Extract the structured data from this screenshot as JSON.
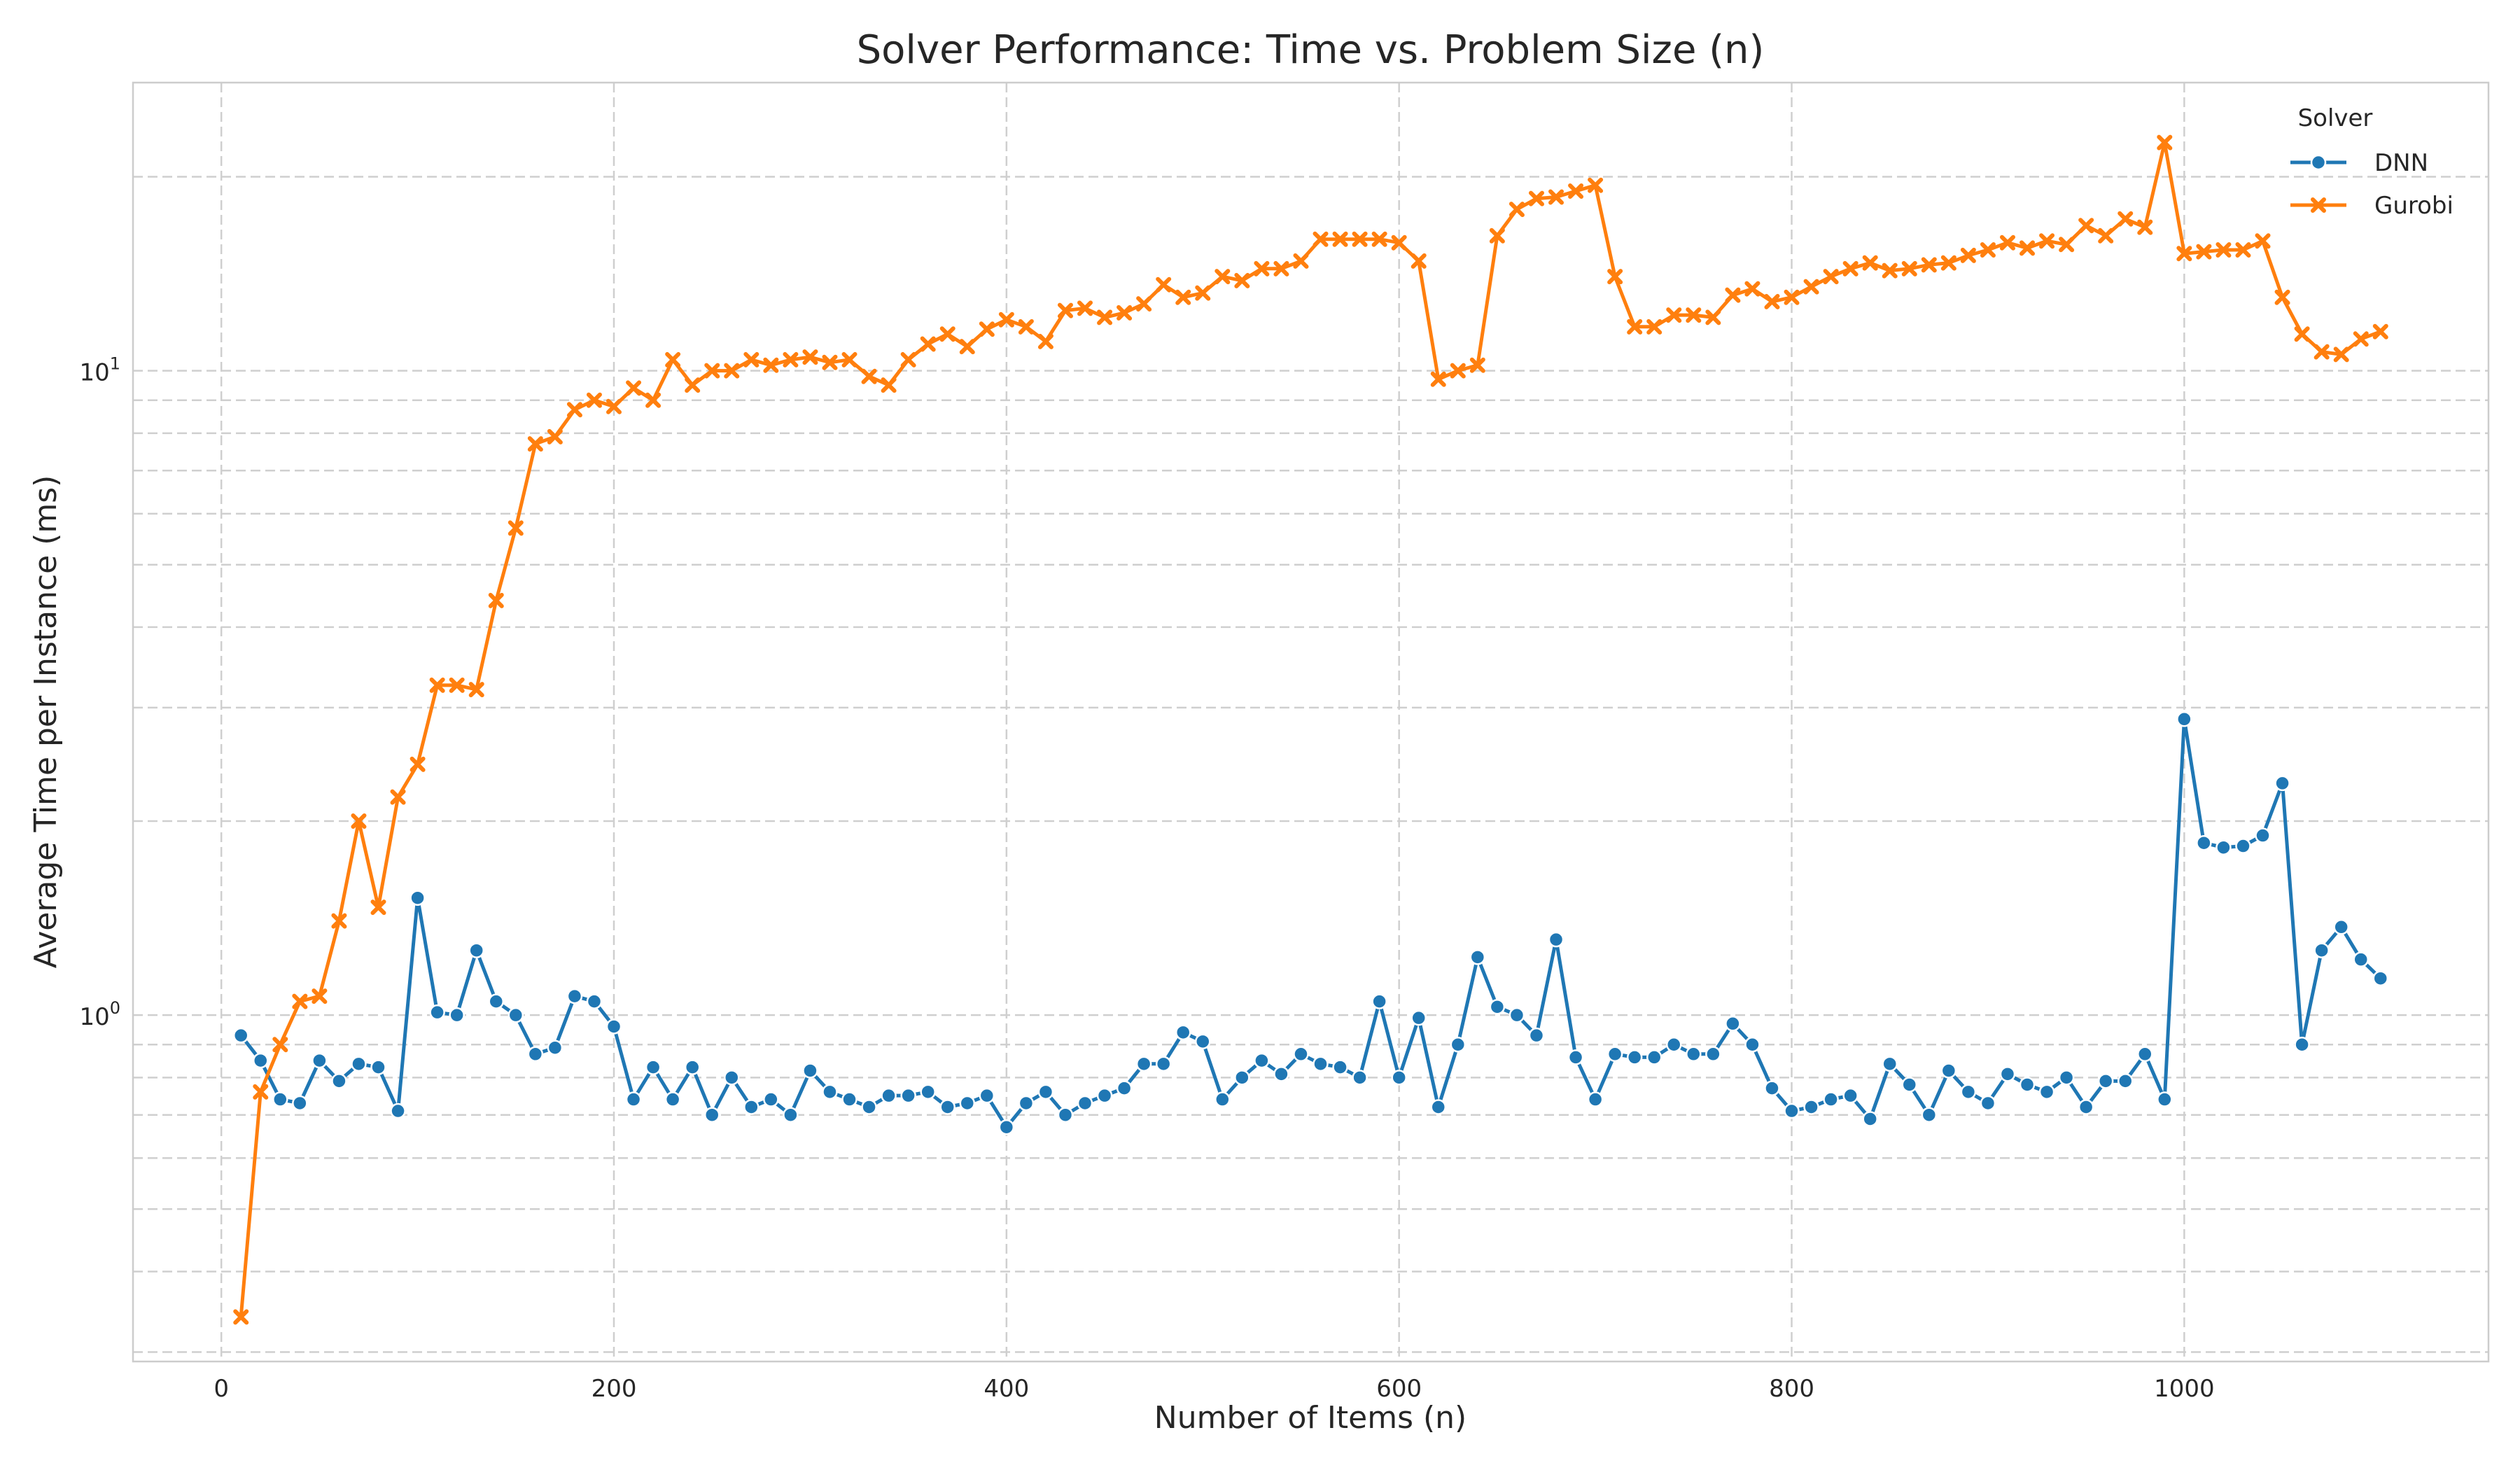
{
  "chart_data": {
    "type": "line",
    "title": "Solver Performance: Time vs. Problem Size (n)",
    "xlabel": "Number of Items (n)",
    "ylabel": "Average Time per Instance (ms)",
    "xlim": [
      -45,
      1155
    ],
    "ylim": [
      0.29,
      28
    ],
    "yscale": "log",
    "x_ticks": [
      0,
      200,
      400,
      600,
      800,
      1000
    ],
    "y_ticks": [
      {
        "value": 1,
        "base": "10",
        "exp": "0"
      },
      {
        "value": 10,
        "base": "10",
        "exp": "1"
      }
    ],
    "y_minor_ticks": [
      0.3,
      0.4,
      0.5,
      0.6,
      0.7,
      0.8,
      0.9,
      2,
      3,
      4,
      5,
      6,
      7,
      8,
      9,
      20
    ],
    "grid": true,
    "legend": {
      "title": "Solver",
      "position": "top-right"
    },
    "x": [
      10,
      20,
      30,
      40,
      50,
      60,
      70,
      80,
      90,
      100,
      110,
      120,
      130,
      140,
      150,
      160,
      170,
      180,
      190,
      200,
      210,
      220,
      230,
      240,
      250,
      260,
      270,
      280,
      290,
      300,
      310,
      320,
      330,
      340,
      350,
      360,
      370,
      380,
      390,
      400,
      410,
      420,
      430,
      440,
      450,
      460,
      470,
      480,
      490,
      500,
      510,
      520,
      530,
      540,
      550,
      560,
      570,
      580,
      590,
      600,
      610,
      620,
      630,
      640,
      650,
      660,
      670,
      680,
      690,
      700,
      710,
      720,
      730,
      740,
      750,
      760,
      770,
      780,
      790,
      800,
      810,
      820,
      830,
      840,
      850,
      860,
      870,
      880,
      890,
      900,
      910,
      920,
      930,
      940,
      950,
      960,
      970,
      980,
      990,
      1000,
      1010,
      1020,
      1030,
      1040,
      1050,
      1060,
      1070,
      1080,
      1090,
      1100
    ],
    "series": [
      {
        "name": "DNN",
        "color": "#1f77b4",
        "marker": "circle",
        "values": [
          0.93,
          0.85,
          0.74,
          0.73,
          0.85,
          0.79,
          0.84,
          0.83,
          0.71,
          1.52,
          1.01,
          1.0,
          1.26,
          1.05,
          1.0,
          0.87,
          0.89,
          1.07,
          1.05,
          0.96,
          0.74,
          0.83,
          0.74,
          0.83,
          0.7,
          0.8,
          0.72,
          0.74,
          0.7,
          0.82,
          0.76,
          0.74,
          0.72,
          0.75,
          0.75,
          0.76,
          0.72,
          0.73,
          0.75,
          0.67,
          0.73,
          0.76,
          0.7,
          0.73,
          0.75,
          0.77,
          0.84,
          0.84,
          0.94,
          0.91,
          0.74,
          0.8,
          0.85,
          0.81,
          0.87,
          0.84,
          0.83,
          0.8,
          1.05,
          0.8,
          0.99,
          0.72,
          0.9,
          1.23,
          1.03,
          1.0,
          0.93,
          1.31,
          0.86,
          0.74,
          0.87,
          0.86,
          0.86,
          0.9,
          0.87,
          0.87,
          0.97,
          0.9,
          0.77,
          0.71,
          0.72,
          0.74,
          0.75,
          0.69,
          0.84,
          0.78,
          0.7,
          0.82,
          0.76,
          0.73,
          0.81,
          0.78,
          0.76,
          0.8,
          0.72,
          0.79,
          0.79,
          0.87,
          0.74,
          2.88,
          1.85,
          1.82,
          1.83,
          1.9,
          2.29,
          0.9,
          1.26,
          1.37,
          1.22,
          1.14
        ]
      },
      {
        "name": "Gurobi",
        "color": "#ff7f0e",
        "marker": "x",
        "values": [
          0.34,
          0.76,
          0.9,
          1.05,
          1.07,
          1.4,
          2.0,
          1.47,
          2.18,
          2.45,
          3.25,
          3.25,
          3.2,
          4.4,
          5.7,
          7.7,
          7.9,
          8.7,
          9.0,
          8.8,
          9.4,
          9.0,
          10.4,
          9.5,
          10.0,
          10.0,
          10.4,
          10.2,
          10.4,
          10.5,
          10.3,
          10.4,
          9.8,
          9.5,
          10.4,
          11.0,
          11.4,
          10.9,
          11.6,
          12.0,
          11.7,
          11.1,
          12.4,
          12.5,
          12.1,
          12.3,
          12.7,
          13.6,
          13.0,
          13.2,
          14.0,
          13.8,
          14.4,
          14.4,
          14.8,
          16.0,
          16.0,
          16.0,
          16.0,
          15.8,
          14.8,
          9.7,
          10.0,
          10.2,
          16.2,
          17.8,
          18.5,
          18.6,
          19.0,
          19.4,
          14.0,
          11.7,
          11.7,
          12.2,
          12.2,
          12.1,
          13.1,
          13.4,
          12.8,
          13.0,
          13.5,
          14.0,
          14.4,
          14.7,
          14.3,
          14.4,
          14.6,
          14.7,
          15.1,
          15.4,
          15.8,
          15.5,
          15.9,
          15.7,
          16.8,
          16.2,
          17.2,
          16.7,
          22.6,
          15.2,
          15.3,
          15.4,
          15.4,
          15.9,
          13.0,
          11.4,
          10.7,
          10.6,
          11.2,
          11.5
        ]
      }
    ]
  }
}
